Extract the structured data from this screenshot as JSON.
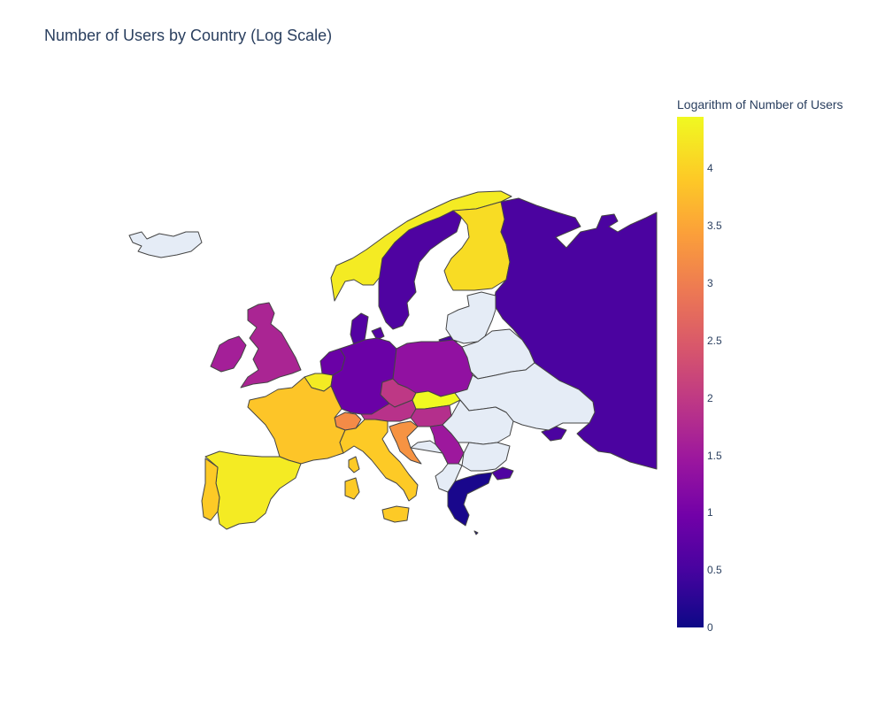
{
  "title": "Number of Users by Country (Log Scale)",
  "chart_data": {
    "type": "choropleth",
    "title": "Number of Users by Country (Log Scale)",
    "projection": "europe",
    "nodata_color": "#e5ecf6",
    "colorscale": "Plasma",
    "colorbar": {
      "title": "Logarithm of Number of Users",
      "range": [
        0,
        4.45
      ],
      "ticks": [
        {
          "value": 0,
          "label": "0"
        },
        {
          "value": 0.5,
          "label": "0.5"
        },
        {
          "value": 1,
          "label": "1"
        },
        {
          "value": 1.5,
          "label": "1.5"
        },
        {
          "value": 2,
          "label": "2"
        },
        {
          "value": 2.5,
          "label": "2.5"
        },
        {
          "value": 3,
          "label": "3"
        },
        {
          "value": 3.5,
          "label": "3.5"
        },
        {
          "value": 4,
          "label": "4"
        }
      ]
    },
    "countries": [
      {
        "name": "Iceland",
        "value": null
      },
      {
        "name": "Norway",
        "value": 4.3
      },
      {
        "name": "Sweden",
        "value": 0.6
      },
      {
        "name": "Finland",
        "value": 4.15
      },
      {
        "name": "Russia",
        "value": 0.55
      },
      {
        "name": "United Kingdom",
        "value": 1.7
      },
      {
        "name": "Ireland",
        "value": 1.6
      },
      {
        "name": "Denmark",
        "value": 0.65
      },
      {
        "name": "Netherlands",
        "value": 0.9
      },
      {
        "name": "Belgium",
        "value": 4.3
      },
      {
        "name": "Germany",
        "value": 0.9
      },
      {
        "name": "Poland",
        "value": 1.35
      },
      {
        "name": "Czechia",
        "value": 2.0
      },
      {
        "name": "Austria",
        "value": 1.9
      },
      {
        "name": "Switzerland",
        "value": 3.2
      },
      {
        "name": "France",
        "value": 3.9
      },
      {
        "name": "Spain",
        "value": 4.3
      },
      {
        "name": "Portugal",
        "value": 3.95
      },
      {
        "name": "Italy",
        "value": 3.95
      },
      {
        "name": "Slovakia",
        "value": 4.45
      },
      {
        "name": "Hungary",
        "value": 1.85
      },
      {
        "name": "Croatia",
        "value": 3.3
      },
      {
        "name": "Serbia",
        "value": 1.5
      },
      {
        "name": "Greece",
        "value": 0.1
      },
      {
        "name": "Baltics",
        "value": null
      },
      {
        "name": "Belarus",
        "value": null
      },
      {
        "name": "Ukraine",
        "value": null
      },
      {
        "name": "Romania",
        "value": null
      },
      {
        "name": "Bulgaria",
        "value": null
      },
      {
        "name": "Balkans-other",
        "value": null
      },
      {
        "name": "Turkey-thrace",
        "value": 0.6
      }
    ]
  }
}
